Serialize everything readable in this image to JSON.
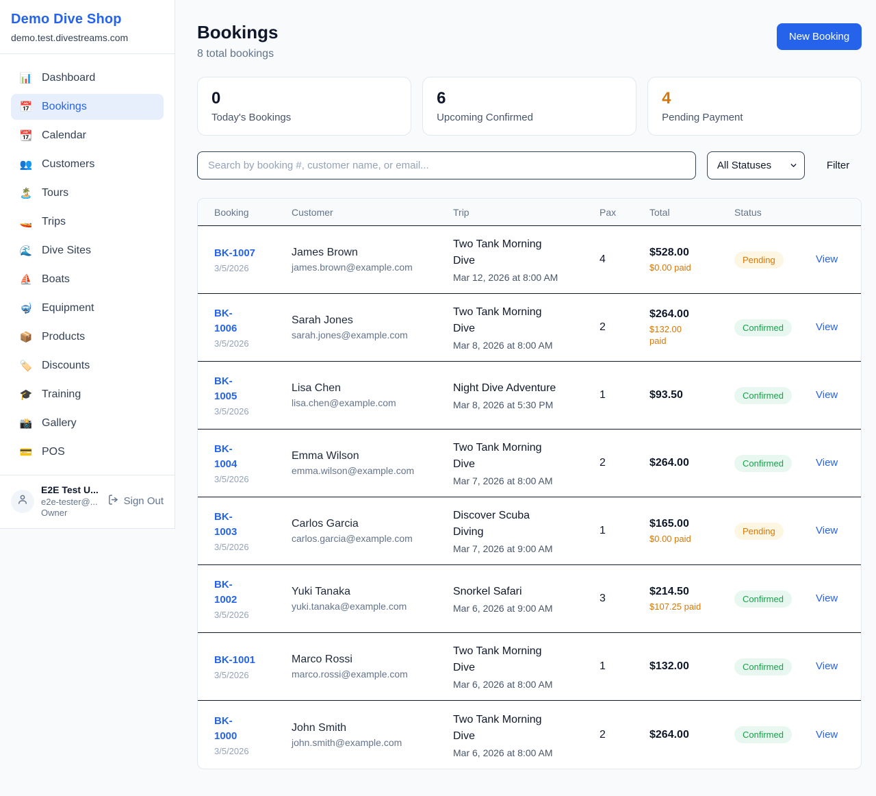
{
  "sidebar": {
    "brand": "Demo Dive Shop",
    "brand_color": "#2563eb",
    "domain": "demo.test.divestreams.com",
    "items": [
      {
        "label": "Dashboard",
        "icon": "bar-chart-icon",
        "glyph": "📊",
        "active": false
      },
      {
        "label": "Bookings",
        "icon": "calendar-icon",
        "glyph": "📅",
        "active": true
      },
      {
        "label": "Calendar",
        "icon": "tear-off-calendar-icon",
        "glyph": "📆",
        "active": false
      },
      {
        "label": "Customers",
        "icon": "people-icon",
        "glyph": "👥",
        "active": false
      },
      {
        "label": "Tours",
        "icon": "island-icon",
        "glyph": "🏝️",
        "active": false
      },
      {
        "label": "Trips",
        "icon": "speedboat-icon",
        "glyph": "🚤",
        "active": false
      },
      {
        "label": "Dive Sites",
        "icon": "wave-icon",
        "glyph": "🌊",
        "active": false
      },
      {
        "label": "Boats",
        "icon": "sailboat-icon",
        "glyph": "⛵",
        "active": false
      },
      {
        "label": "Equipment",
        "icon": "diving-mask-icon",
        "glyph": "🤿",
        "active": false
      },
      {
        "label": "Products",
        "icon": "package-icon",
        "glyph": "📦",
        "active": false
      },
      {
        "label": "Discounts",
        "icon": "label-tag-icon",
        "glyph": "🏷️",
        "active": false
      },
      {
        "label": "Training",
        "icon": "graduation-cap-icon",
        "glyph": "🎓",
        "active": false
      },
      {
        "label": "Gallery",
        "icon": "camera-icon",
        "glyph": "📸",
        "active": false
      },
      {
        "label": "POS",
        "icon": "credit-card-icon",
        "glyph": "💳",
        "active": false
      }
    ],
    "user": {
      "name": "E2E Test U...",
      "email": "e2e-tester@...",
      "role": "Owner",
      "sign_out_label": "Sign Out"
    }
  },
  "header": {
    "title": "Bookings",
    "subtitle": "8 total bookings",
    "new_booking_label": "New Booking"
  },
  "stats": [
    {
      "value": "0",
      "label": "Today's Bookings",
      "color": "#0f172a"
    },
    {
      "value": "6",
      "label": "Upcoming Confirmed",
      "color": "#0f172a"
    },
    {
      "value": "4",
      "label": "Pending Payment",
      "color": "#d97706"
    }
  ],
  "toolbar": {
    "search_placeholder": "Search by booking #, customer name, or email...",
    "status_filter_value": "All Statuses",
    "filter_label": "Filter"
  },
  "table": {
    "columns": [
      "Booking",
      "Customer",
      "Trip",
      "Pax",
      "Total",
      "Status"
    ],
    "view_label": "View",
    "status_styles": {
      "Pending": {
        "color": "#d97706",
        "bg": "#fdf6e3"
      },
      "Confirmed": {
        "color": "#16a34a",
        "bg": "#e8f7ef"
      }
    },
    "paid_color": "#d97706",
    "rows": [
      {
        "id": "BK-1007",
        "date": "3/5/2026",
        "name": "James Brown",
        "email": "james.brown@example.com",
        "trip": "Two Tank Morning\nDive",
        "trip_dt": "Mar 12, 2026 at 8:00 AM",
        "pax": "4",
        "total": "$528.00",
        "paid": "$0.00 paid",
        "status": "Pending"
      },
      {
        "id": "BK-\n1006",
        "date": "3/5/2026",
        "name": "Sarah Jones",
        "email": "sarah.jones@example.com",
        "trip": "Two Tank Morning\nDive",
        "trip_dt": "Mar 8, 2026 at 8:00 AM",
        "pax": "2",
        "total": "$264.00",
        "paid": "$132.00\npaid",
        "status": "Confirmed"
      },
      {
        "id": "BK-\n1005",
        "date": "3/5/2026",
        "name": "Lisa Chen",
        "email": "lisa.chen@example.com",
        "trip": "Night Dive Adventure",
        "trip_dt": "Mar 8, 2026 at 5:30 PM",
        "pax": "1",
        "total": "$93.50",
        "paid": null,
        "status": "Confirmed"
      },
      {
        "id": "BK-\n1004",
        "date": "3/5/2026",
        "name": "Emma Wilson",
        "email": "emma.wilson@example.com",
        "trip": "Two Tank Morning\nDive",
        "trip_dt": "Mar 7, 2026 at 8:00 AM",
        "pax": "2",
        "total": "$264.00",
        "paid": null,
        "status": "Confirmed"
      },
      {
        "id": "BK-\n1003",
        "date": "3/5/2026",
        "name": "Carlos Garcia",
        "email": "carlos.garcia@example.com",
        "trip": "Discover Scuba\nDiving",
        "trip_dt": "Mar 7, 2026 at 9:00 AM",
        "pax": "1",
        "total": "$165.00",
        "paid": "$0.00 paid",
        "status": "Pending"
      },
      {
        "id": "BK-\n1002",
        "date": "3/5/2026",
        "name": "Yuki Tanaka",
        "email": "yuki.tanaka@example.com",
        "trip": "Snorkel Safari",
        "trip_dt": "Mar 6, 2026 at 9:00 AM",
        "pax": "3",
        "total": "$214.50",
        "paid": "$107.25 paid",
        "status": "Confirmed"
      },
      {
        "id": "BK-1001",
        "date": "3/5/2026",
        "name": "Marco Rossi",
        "email": "marco.rossi@example.com",
        "trip": "Two Tank Morning\nDive",
        "trip_dt": "Mar 6, 2026 at 8:00 AM",
        "pax": "1",
        "total": "$132.00",
        "paid": null,
        "status": "Confirmed"
      },
      {
        "id": "BK-\n1000",
        "date": "3/5/2026",
        "name": "John Smith",
        "email": "john.smith@example.com",
        "trip": "Two Tank Morning\nDive",
        "trip_dt": "Mar 6, 2026 at 8:00 AM",
        "pax": "2",
        "total": "$264.00",
        "paid": null,
        "status": "Confirmed"
      }
    ]
  }
}
